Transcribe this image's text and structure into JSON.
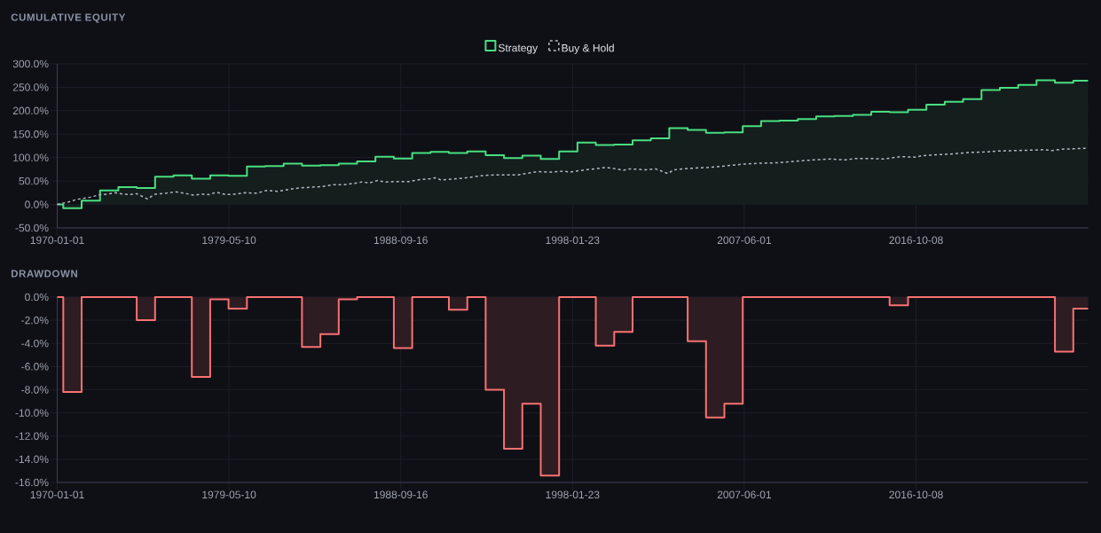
{
  "chart_data": [
    {
      "type": "step",
      "title": "CUMULATIVE EQUITY",
      "legend": "top",
      "grid": true,
      "xlim": [
        "1970-01-01",
        "2026-02-20"
      ],
      "xticks": [
        "1970-01-01",
        "1979-05-10",
        "1988-09-16",
        "1998-01-23",
        "2007-06-01",
        "2016-10-08"
      ],
      "ylim": [
        -50,
        300
      ],
      "yticks": [
        {
          "value": -50,
          "label": "-50.0%"
        },
        {
          "value": 0,
          "label": "0.0%"
        },
        {
          "value": 50,
          "label": "50.0%"
        },
        {
          "value": 100,
          "label": "100.0%"
        },
        {
          "value": 150,
          "label": "150.0%"
        },
        {
          "value": 200,
          "label": "200.0%"
        },
        {
          "value": 250,
          "label": "250.0%"
        },
        {
          "value": 300,
          "label": "300.0%"
        }
      ],
      "series": [
        {
          "name": "Strategy",
          "color": "#4ade80",
          "line_style": "solid",
          "x": [
            "1970-01-01",
            "1970-05",
            "1971-05",
            "1972-05",
            "1973-05",
            "1974-05",
            "1975-05",
            "1976-05",
            "1977-05",
            "1978-05",
            "1979-05",
            "1980-05",
            "1981-05",
            "1982-05",
            "1983-05",
            "1984-05",
            "1985-05",
            "1986-05",
            "1987-05",
            "1988-05",
            "1989-05",
            "1990-05",
            "1991-05",
            "1992-05",
            "1993-05",
            "1994-05",
            "1995-05",
            "1996-05",
            "1997-05",
            "1998-05",
            "1999-05",
            "2000-05",
            "2001-05",
            "2002-05",
            "2003-05",
            "2004-05",
            "2005-05",
            "2006-05",
            "2007-05",
            "2008-05",
            "2009-05",
            "2010-05",
            "2011-05",
            "2012-05",
            "2013-05",
            "2014-05",
            "2015-05",
            "2016-05",
            "2017-05",
            "2018-05",
            "2019-05",
            "2020-05",
            "2021-05",
            "2022-05",
            "2023-05",
            "2024-05",
            "2025-05",
            "2026-02-20"
          ],
          "values": [
            0,
            -8,
            8,
            30,
            37,
            35,
            59,
            62,
            55,
            62,
            61,
            81,
            82,
            87,
            83,
            84,
            87,
            92,
            102,
            98,
            110,
            112,
            110,
            113,
            105,
            99,
            104,
            97,
            113,
            132,
            127,
            128,
            137,
            141,
            163,
            159,
            153,
            154,
            167,
            178,
            179,
            182,
            188,
            189,
            191,
            198,
            197,
            202,
            213,
            219,
            225,
            244,
            249,
            255,
            265,
            260,
            264,
            264
          ]
        },
        {
          "name": "Buy & Hold",
          "color": "#b4b8c2",
          "type": "line",
          "line_style": "dashed",
          "x": [
            "1970-01",
            "1970-08",
            "1971-02",
            "1971-10",
            "1972-05",
            "1972-10",
            "1973-03",
            "1973-08",
            "1973-12",
            "1974-05",
            "1974-10",
            "1974-12",
            "1975-05",
            "1975-12",
            "1976-06",
            "1976-12",
            "1977-06",
            "1977-12",
            "1978-04",
            "1978-09",
            "1979-03",
            "1979-09",
            "1980-04",
            "1980-11",
            "1981-06",
            "1982-01",
            "1982-08",
            "1983-03",
            "1983-11",
            "1984-06",
            "1985-01",
            "1985-08",
            "1986-03",
            "1986-08",
            "1987-01",
            "1987-06",
            "1987-12",
            "1988-07",
            "1989-03",
            "1989-10",
            "1990-05",
            "1990-08",
            "1990-12",
            "1991-07",
            "1992-02",
            "1992-09",
            "1993-04",
            "1993-12",
            "1994-07",
            "1995-02",
            "1995-09",
            "1996-03",
            "1996-11",
            "1997-08",
            "1997-12",
            "1998-10",
            "1999-04",
            "1999-12",
            "2000-06",
            "2000-11",
            "2001-03",
            "2002-01",
            "2002-08",
            "2002-12",
            "2003-04",
            "2003-08",
            "2004-06",
            "2005-06",
            "2006-05",
            "2007-05",
            "2008-04",
            "2009-04",
            "2010-03",
            "2011-03",
            "2012-02",
            "2012-12",
            "2013-06",
            "2014-06",
            "2015-01",
            "2015-12",
            "2016-10",
            "2017-02",
            "2017-11",
            "2018-11",
            "2019-10",
            "2020-07",
            "2021-04",
            "2022-04",
            "2023-03",
            "2023-10",
            "2024-03",
            "2024-10",
            "2025-07",
            "2026-02-20"
          ],
          "values": [
            0,
            5,
            11,
            15,
            21,
            22,
            25,
            22,
            21,
            23,
            15,
            12,
            22,
            24,
            27,
            24,
            20,
            22,
            21,
            26,
            21,
            22,
            25,
            24,
            30,
            28,
            32,
            35,
            37,
            38,
            42,
            42,
            45,
            48,
            46,
            51,
            48,
            49,
            49,
            53,
            55,
            57,
            52,
            54,
            56,
            59,
            62,
            63,
            63,
            63,
            67,
            70,
            69,
            71,
            69,
            74,
            76,
            79,
            76,
            73,
            76,
            74,
            76,
            71,
            66,
            74,
            77,
            79,
            82,
            86,
            88,
            89,
            92,
            95,
            97,
            95,
            98,
            98,
            97,
            102,
            101,
            104,
            106,
            108,
            111,
            112,
            114,
            115,
            116,
            117,
            115,
            118,
            119,
            120
          ]
        }
      ]
    },
    {
      "type": "step",
      "title": "DRAWDOWN",
      "grid": true,
      "xlim": [
        "1970-01-01",
        "2026-02-20"
      ],
      "xticks": [
        "1970-01-01",
        "1979-05-10",
        "1988-09-16",
        "1998-01-23",
        "2007-06-01",
        "2016-10-08"
      ],
      "ylim": [
        -16,
        0
      ],
      "yticks": [
        {
          "value": -16,
          "label": "-16.0%"
        },
        {
          "value": -14,
          "label": "-14.0%"
        },
        {
          "value": -12,
          "label": "-12.0%"
        },
        {
          "value": -10,
          "label": "-10.0%"
        },
        {
          "value": -8,
          "label": "-8.0%"
        },
        {
          "value": -6,
          "label": "-6.0%"
        },
        {
          "value": -4,
          "label": "-4.0%"
        },
        {
          "value": -2,
          "label": "-2.0%"
        },
        {
          "value": 0,
          "label": "0.0%"
        }
      ],
      "series": [
        {
          "color": "#f87171",
          "line_style": "solid",
          "x": [
            "1970-01-01",
            "1970-05",
            "1971-05",
            "1972-05",
            "1973-05",
            "1974-05",
            "1975-05",
            "1976-05",
            "1977-05",
            "1978-05",
            "1979-05",
            "1980-05",
            "1981-05",
            "1982-05",
            "1983-05",
            "1984-05",
            "1985-05",
            "1986-05",
            "1987-05",
            "1988-05",
            "1989-05",
            "1990-05",
            "1991-05",
            "1992-05",
            "1993-05",
            "1994-05",
            "1995-05",
            "1996-05",
            "1997-05",
            "1998-05",
            "1999-05",
            "2000-05",
            "2001-05",
            "2002-05",
            "2003-05",
            "2004-05",
            "2005-05",
            "2006-05",
            "2007-05",
            "2008-05",
            "2009-05",
            "2010-05",
            "2011-05",
            "2012-05",
            "2013-05",
            "2014-05",
            "2015-05",
            "2016-05",
            "2017-05",
            "2018-05",
            "2019-05",
            "2020-05",
            "2021-05",
            "2022-05",
            "2023-05",
            "2024-05",
            "2025-05",
            "2026-02-20"
          ],
          "values": [
            0,
            -8.2,
            0,
            0,
            0,
            -2.0,
            0,
            0,
            -6.9,
            -0.2,
            -1.0,
            0,
            0,
            0,
            -4.3,
            -3.2,
            -0.2,
            0,
            0,
            -4.4,
            0,
            0,
            -1.1,
            0,
            -8.0,
            -13.1,
            -9.2,
            -15.4,
            0,
            0,
            -4.2,
            -3.0,
            0,
            0,
            0,
            -3.8,
            -10.4,
            -9.2,
            0,
            0,
            0,
            0,
            0,
            0,
            0,
            0,
            -0.7,
            0,
            0,
            0,
            0,
            0,
            0,
            0,
            0,
            -4.7,
            -1.0,
            -1.0
          ]
        }
      ]
    }
  ]
}
